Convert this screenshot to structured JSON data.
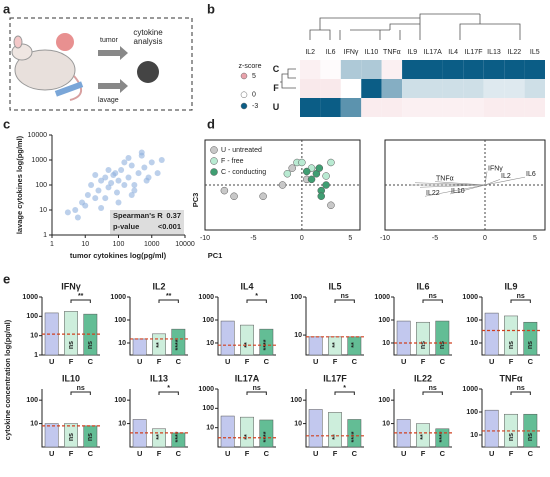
{
  "panel_labels": [
    "a",
    "b",
    "c",
    "d",
    "e"
  ],
  "panel_a": {
    "tumor": "tumor",
    "lavage": "lavage",
    "analysis": "cytokine analysis"
  },
  "panel_e_ylabel": "cytokine concentration log(pg/ml)",
  "chart_data": [
    {
      "type": "heatmap",
      "columns": [
        "IL2",
        "IL6",
        "IFNγ",
        "IL10",
        "TNFα",
        "IL9",
        "IL17A",
        "IL4",
        "IL17F",
        "IL13",
        "IL22",
        "IL5"
      ],
      "rows": [
        "C",
        "F",
        "U"
      ],
      "values": [
        [
          0.8,
          0.2,
          -1,
          -1,
          0.8,
          -3,
          -3,
          -3,
          -3,
          -3,
          -3,
          -3
        ],
        [
          1.2,
          1.2,
          0,
          -3,
          -1.5,
          -0.6,
          -0.6,
          -0.6,
          -0.6,
          -0.4,
          -0.4,
          -0.6
        ],
        [
          -3,
          -3,
          -2,
          1,
          1,
          0.8,
          0.8,
          0.8,
          0.8,
          1,
          1,
          1
        ]
      ],
      "legend_title": "z-score",
      "legend_ticks": [
        5,
        0,
        -3
      ],
      "colors": [
        "#0b5d86",
        "#ffffff",
        "#e8a2ab"
      ]
    },
    {
      "type": "scatter",
      "xlabel": "tumor cytokines log(pg/ml)",
      "ylabel": "lavage cytokines log(pg/ml)",
      "x": [
        5,
        8,
        10,
        12,
        15,
        20,
        25,
        30,
        40,
        50,
        60,
        80,
        100,
        120,
        150,
        200,
        250,
        300,
        400,
        500,
        600,
        800,
        1000,
        1500,
        2000,
        3,
        6,
        30,
        50,
        70,
        90,
        150,
        200,
        300,
        500,
        700,
        40,
        100,
        250,
        20
      ],
      "y": [
        10,
        20,
        15,
        40,
        100,
        30,
        60,
        150,
        200,
        80,
        120,
        300,
        150,
        400,
        100,
        200,
        600,
        100,
        300,
        1500,
        500,
        200,
        800,
        300,
        1000,
        8,
        5,
        12,
        400,
        250,
        50,
        800,
        1200,
        60,
        2000,
        150,
        30,
        20,
        40,
        250
      ],
      "xlim": [
        1,
        10000
      ],
      "ylim": [
        1,
        10000
      ],
      "xticks": [
        1,
        10,
        100,
        1000,
        10000
      ],
      "yticks": [
        1,
        10,
        100,
        1000,
        10000
      ],
      "log_x": true,
      "log_y": true,
      "color": "#8fb0de",
      "stats": {
        "names": [
          "Spearman's R",
          "p-value"
        ],
        "values": [
          0.37,
          "<0.001"
        ]
      }
    },
    {
      "type": "pca_scores",
      "xlabel": "PC1",
      "ylabel": "PC3",
      "xlim": [
        -10,
        6
      ],
      "ylim": [
        -4,
        4
      ],
      "xticks": [
        -10,
        -5,
        0,
        5
      ],
      "series": [
        {
          "name": "U - untreated",
          "color": "#c8c8c8",
          "x": [
            -8,
            -7,
            -4,
            -2,
            0.5,
            3,
            -1
          ],
          "y": [
            -0.5,
            -1,
            -1,
            0,
            0.5,
            -1.8,
            1.5
          ]
        },
        {
          "name": "F - free",
          "color": "#b9ead2",
          "x": [
            -1.5,
            -0.5,
            0,
            1,
            3,
            2.5
          ],
          "y": [
            1,
            2,
            2,
            1.5,
            2,
            0.8
          ]
        },
        {
          "name": "C - conducting",
          "color": "#3f9e72",
          "x": [
            0.5,
            1,
            1.5,
            2,
            2,
            2.5,
            1.8
          ],
          "y": [
            1.2,
            0.5,
            1,
            -0.5,
            -1,
            0,
            1.5
          ]
        }
      ]
    },
    {
      "type": "pca_loadings",
      "xlim": [
        -10,
        6
      ],
      "ylim": [
        -4,
        4
      ],
      "xticks": [
        -10,
        -5,
        0,
        5
      ],
      "labels": [
        "IFNγ",
        "IL2",
        "IL6",
        "TNFα",
        "IL22",
        "IL10",
        null,
        null,
        null
      ],
      "x": [
        0.2,
        1.5,
        4,
        -5,
        -6,
        -3.5,
        -7.5,
        -7,
        -6.5
      ],
      "y": [
        1.2,
        0.5,
        0.7,
        0.3,
        -1,
        -0.8,
        0,
        0.2,
        -0.2
      ]
    },
    {
      "type": "bar",
      "title": "IFNγ",
      "categories": [
        "U",
        "F",
        "C"
      ],
      "values": [
        150,
        180,
        130
      ],
      "ylim": [
        1,
        1000
      ],
      "yticks": [
        1,
        10,
        100,
        1000
      ],
      "limit": 12,
      "comparison": "**",
      "bar_labels": [
        null,
        "ns",
        "ns"
      ],
      "colors": [
        "#c2c8ee",
        "#cdeedc",
        "#63bd95"
      ]
    },
    {
      "type": "bar",
      "title": "IL2",
      "categories": [
        "U",
        "F",
        "C"
      ],
      "values": [
        15,
        25,
        40
      ],
      "ylim": [
        3,
        1000
      ],
      "yticks": [
        10,
        100,
        1000
      ],
      "limit": 15,
      "comparison": "**",
      "bar_labels": [
        null,
        "**",
        "****"
      ],
      "colors": [
        "#c2c8ee",
        "#cdeedc",
        "#63bd95"
      ]
    },
    {
      "type": "bar",
      "title": "IL4",
      "categories": [
        "U",
        "F",
        "C"
      ],
      "values": [
        90,
        60,
        40
      ],
      "ylim": [
        3,
        1000
      ],
      "yticks": [
        10,
        100,
        1000
      ],
      "limit": 8,
      "comparison": "*",
      "bar_labels": [
        null,
        "**",
        "****"
      ],
      "colors": [
        "#c2c8ee",
        "#cdeedc",
        "#63bd95"
      ]
    },
    {
      "type": "bar",
      "title": "IL5",
      "categories": [
        "U",
        "F",
        "C"
      ],
      "values": [
        9,
        9,
        9
      ],
      "ylim": [
        3,
        100
      ],
      "yticks": [
        10,
        100
      ],
      "limit": 9,
      "comparison": "ns",
      "bar_labels": [
        null,
        "**",
        "**"
      ],
      "colors": [
        "#c2c8ee",
        "#cdeedc",
        "#63bd95"
      ]
    },
    {
      "type": "bar",
      "title": "IL6",
      "categories": [
        "U",
        "F",
        "C"
      ],
      "values": [
        90,
        80,
        90
      ],
      "ylim": [
        3,
        1000
      ],
      "yticks": [
        10,
        100,
        1000
      ],
      "limit": 10,
      "comparison": "ns",
      "bar_labels": [
        null,
        "ns",
        "ns"
      ],
      "colors": [
        "#c2c8ee",
        "#cdeedc",
        "#63bd95"
      ]
    },
    {
      "type": "bar",
      "title": "IL9",
      "categories": [
        "U",
        "F",
        "C"
      ],
      "values": [
        200,
        150,
        80
      ],
      "ylim": [
        3,
        1000
      ],
      "yticks": [
        10,
        100,
        1000
      ],
      "limit": 35,
      "comparison": "ns",
      "bar_labels": [
        null,
        "ns",
        "ns"
      ],
      "colors": [
        "#c2c8ee",
        "#cdeedc",
        "#63bd95"
      ]
    },
    {
      "type": "bar",
      "title": "IL10",
      "categories": [
        "U",
        "F",
        "C"
      ],
      "values": [
        10,
        10,
        8
      ],
      "ylim": [
        1,
        300
      ],
      "yticks": [
        10,
        100
      ],
      "limit": 8,
      "comparison": "ns",
      "bar_labels": [
        null,
        "ns",
        "ns"
      ],
      "colors": [
        "#c2c8ee",
        "#cdeedc",
        "#63bd95"
      ]
    },
    {
      "type": "bar",
      "title": "IL13",
      "categories": [
        "U",
        "F",
        "C"
      ],
      "values": [
        15,
        6,
        4
      ],
      "ylim": [
        1,
        300
      ],
      "yticks": [
        10,
        100
      ],
      "limit": 4,
      "comparison": "*",
      "bar_labels": [
        null,
        "**",
        "****"
      ],
      "colors": [
        "#c2c8ee",
        "#cdeedc",
        "#63bd95"
      ]
    },
    {
      "type": "bar",
      "title": "IL17A",
      "categories": [
        "U",
        "F",
        "C"
      ],
      "values": [
        40,
        35,
        25
      ],
      "ylim": [
        1,
        1000
      ],
      "yticks": [
        10,
        100,
        1000
      ],
      "limit": 3,
      "comparison": "ns",
      "bar_labels": [
        null,
        "**",
        "****"
      ],
      "colors": [
        "#c2c8ee",
        "#cdeedc",
        "#63bd95"
      ]
    },
    {
      "type": "bar",
      "title": "IL17F",
      "categories": [
        "U",
        "F",
        "C"
      ],
      "values": [
        40,
        30,
        15
      ],
      "ylim": [
        1,
        300
      ],
      "yticks": [
        10,
        100
      ],
      "limit": 3,
      "comparison": "*",
      "bar_labels": [
        null,
        "**",
        "****"
      ],
      "colors": [
        "#c2c8ee",
        "#cdeedc",
        "#63bd95"
      ]
    },
    {
      "type": "bar",
      "title": "IL22",
      "categories": [
        "U",
        "F",
        "C"
      ],
      "values": [
        15,
        10,
        6
      ],
      "ylim": [
        1,
        300
      ],
      "yticks": [
        10,
        100
      ],
      "limit": 4,
      "comparison": "ns",
      "bar_labels": [
        null,
        "**",
        "****"
      ],
      "colors": [
        "#c2c8ee",
        "#cdeedc",
        "#63bd95"
      ]
    },
    {
      "type": "bar",
      "title": "TNFα",
      "categories": [
        "U",
        "F",
        "C"
      ],
      "values": [
        120,
        80,
        80
      ],
      "ylim": [
        3,
        1000
      ],
      "yticks": [
        10,
        100,
        1000
      ],
      "limit": 15,
      "comparison": "ns",
      "bar_labels": [
        null,
        "ns",
        "ns"
      ],
      "colors": [
        "#c2c8ee",
        "#cdeedc",
        "#63bd95"
      ]
    }
  ]
}
